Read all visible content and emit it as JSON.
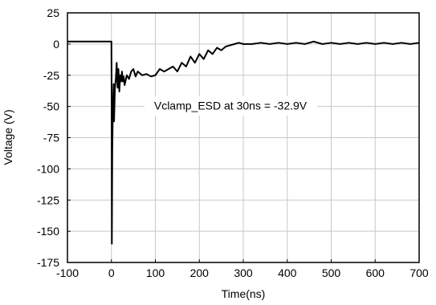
{
  "chart_data": {
    "type": "line",
    "title": "",
    "xlabel": "Time(ns)",
    "ylabel": "Voltage (V)",
    "xlim": [
      -100,
      700
    ],
    "ylim": [
      -175,
      25
    ],
    "xticks": [
      -100,
      0,
      100,
      200,
      300,
      400,
      500,
      600,
      700
    ],
    "yticks": [
      25,
      0,
      -25,
      -50,
      -75,
      -100,
      -125,
      -150,
      -175
    ],
    "grid": true,
    "legend": "none",
    "annotation": {
      "text": "Vclamp_ESD at 30ns = -32.9V",
      "x": 240,
      "y": -50
    },
    "series": [
      {
        "color": "#000000",
        "x": [
          -100,
          -80,
          -60,
          -40,
          -20,
          -5,
          0,
          0.5,
          1,
          1.5,
          2,
          3,
          4,
          5,
          6,
          8,
          10,
          12,
          14,
          16,
          18,
          20,
          22,
          24,
          26,
          28,
          30,
          35,
          40,
          45,
          50,
          55,
          60,
          70,
          80,
          90,
          100,
          110,
          120,
          130,
          140,
          150,
          160,
          170,
          180,
          190,
          200,
          210,
          220,
          230,
          240,
          250,
          260,
          270,
          280,
          290,
          300,
          320,
          340,
          360,
          380,
          400,
          420,
          440,
          460,
          480,
          500,
          520,
          540,
          560,
          580,
          600,
          620,
          640,
          660,
          680,
          700
        ],
        "y": [
          2,
          2,
          2,
          2,
          2,
          2,
          2,
          -40,
          -160,
          -120,
          -85,
          -60,
          -45,
          -32,
          -62,
          -35,
          -28,
          -15,
          -35,
          -20,
          -38,
          -25,
          -30,
          -22,
          -30,
          -26,
          -32.9,
          -25,
          -28,
          -22,
          -20,
          -26,
          -22,
          -25,
          -24,
          -26,
          -25,
          -20,
          -22,
          -20,
          -18,
          -22,
          -15,
          -18,
          -10,
          -15,
          -8,
          -12,
          -5,
          -8,
          -3,
          -5,
          -2,
          -1,
          0,
          1,
          0,
          0,
          1,
          0,
          1,
          0,
          1,
          0,
          2,
          0,
          1,
          0,
          1,
          0,
          1,
          0,
          1,
          0,
          1,
          0,
          1
        ]
      }
    ]
  }
}
